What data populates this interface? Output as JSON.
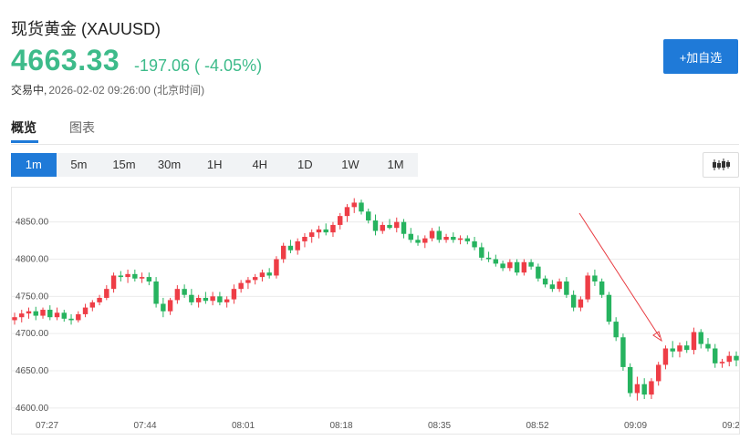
{
  "header": {
    "title": "现货黄金 (XAUUSD)",
    "price": "4663.33",
    "change": "-197.06 ( -4.05%)",
    "status_label": "交易中,",
    "timestamp": "2026-02-02 09:26:00 (北京时间)",
    "add_button": "+加自选"
  },
  "tabs": [
    {
      "label": "概览",
      "active": true
    },
    {
      "label": "图表",
      "active": false
    }
  ],
  "intervals": [
    {
      "label": "1m",
      "active": true
    },
    {
      "label": "5m",
      "active": false
    },
    {
      "label": "15m",
      "active": false
    },
    {
      "label": "30m",
      "active": false
    },
    {
      "label": "1H",
      "active": false
    },
    {
      "label": "4H",
      "active": false
    },
    {
      "label": "1D",
      "active": false
    },
    {
      "label": "1W",
      "active": false
    },
    {
      "label": "1M",
      "active": false
    }
  ],
  "colors": {
    "up": "#ee3d46",
    "down": "#26b35f",
    "accent": "#1f7ad8",
    "price": "#3dbb8a",
    "annotation_arrow": "#e8393f"
  },
  "chart_data": {
    "type": "candlestick",
    "ylim": [
      4590,
      4890
    ],
    "y_ticks": [
      "4600.00",
      "4650.00",
      "4700.00",
      "4750.00",
      "4800.00",
      "4850.00"
    ],
    "x_ticks": [
      "07:27",
      "07:44",
      "08:01",
      "08:18",
      "08:35",
      "08:52",
      "09:09",
      "09:2"
    ],
    "annotation": "arrow pointing down toward the 09:09 low",
    "ohlc": [
      [
        4718,
        4728,
        4712,
        4722
      ],
      [
        4722,
        4732,
        4715,
        4727
      ],
      [
        4727,
        4735,
        4720,
        4730
      ],
      [
        4730,
        4736,
        4718,
        4724
      ],
      [
        4724,
        4735,
        4720,
        4732
      ],
      [
        4732,
        4738,
        4718,
        4722
      ],
      [
        4722,
        4735,
        4718,
        4728
      ],
      [
        4728,
        4732,
        4716,
        4720
      ],
      [
        4720,
        4726,
        4712,
        4718
      ],
      [
        4718,
        4730,
        4715,
        4726
      ],
      [
        4726,
        4740,
        4722,
        4735
      ],
      [
        4735,
        4745,
        4730,
        4742
      ],
      [
        4742,
        4752,
        4738,
        4748
      ],
      [
        4748,
        4765,
        4745,
        4760
      ],
      [
        4760,
        4782,
        4755,
        4778
      ],
      [
        4778,
        4784,
        4770,
        4776
      ],
      [
        4776,
        4786,
        4768,
        4780
      ],
      [
        4780,
        4786,
        4770,
        4774
      ],
      [
        4774,
        4782,
        4768,
        4776
      ],
      [
        4776,
        4782,
        4765,
        4770
      ],
      [
        4770,
        4776,
        4735,
        4740
      ],
      [
        4740,
        4748,
        4722,
        4730
      ],
      [
        4730,
        4748,
        4725,
        4745
      ],
      [
        4745,
        4765,
        4740,
        4760
      ],
      [
        4760,
        4766,
        4748,
        4752
      ],
      [
        4752,
        4760,
        4738,
        4742
      ],
      [
        4742,
        4752,
        4735,
        4748
      ],
      [
        4748,
        4756,
        4740,
        4744
      ],
      [
        4744,
        4756,
        4738,
        4750
      ],
      [
        4750,
        4756,
        4738,
        4742
      ],
      [
        4742,
        4750,
        4735,
        4746
      ],
      [
        4746,
        4766,
        4740,
        4760
      ],
      [
        4760,
        4772,
        4755,
        4768
      ],
      [
        4768,
        4776,
        4760,
        4772
      ],
      [
        4772,
        4780,
        4766,
        4776
      ],
      [
        4776,
        4786,
        4770,
        4782
      ],
      [
        4782,
        4788,
        4774,
        4778
      ],
      [
        4778,
        4804,
        4774,
        4800
      ],
      [
        4800,
        4822,
        4795,
        4818
      ],
      [
        4818,
        4826,
        4808,
        4812
      ],
      [
        4812,
        4828,
        4806,
        4824
      ],
      [
        4824,
        4835,
        4816,
        4830
      ],
      [
        4830,
        4840,
        4822,
        4836
      ],
      [
        4836,
        4845,
        4828,
        4840
      ],
      [
        4840,
        4848,
        4832,
        4836
      ],
      [
        4836,
        4850,
        4830,
        4846
      ],
      [
        4846,
        4862,
        4840,
        4858
      ],
      [
        4858,
        4874,
        4850,
        4870
      ],
      [
        4870,
        4882,
        4862,
        4876
      ],
      [
        4876,
        4880,
        4860,
        4864
      ],
      [
        4864,
        4868,
        4848,
        4852
      ],
      [
        4852,
        4860,
        4832,
        4838
      ],
      [
        4838,
        4850,
        4834,
        4846
      ],
      [
        4846,
        4854,
        4840,
        4842
      ],
      [
        4842,
        4856,
        4836,
        4850
      ],
      [
        4850,
        4854,
        4828,
        4834
      ],
      [
        4834,
        4842,
        4822,
        4826
      ],
      [
        4826,
        4832,
        4818,
        4822
      ],
      [
        4822,
        4832,
        4815,
        4828
      ],
      [
        4828,
        4842,
        4824,
        4838
      ],
      [
        4838,
        4844,
        4822,
        4826
      ],
      [
        4826,
        4834,
        4822,
        4830
      ],
      [
        4830,
        4836,
        4822,
        4826
      ],
      [
        4826,
        4832,
        4820,
        4828
      ],
      [
        4828,
        4832,
        4820,
        4824
      ],
      [
        4824,
        4830,
        4812,
        4816
      ],
      [
        4816,
        4822,
        4798,
        4802
      ],
      [
        4802,
        4810,
        4796,
        4800
      ],
      [
        4800,
        4806,
        4790,
        4794
      ],
      [
        4794,
        4798,
        4784,
        4788
      ],
      [
        4788,
        4800,
        4784,
        4796
      ],
      [
        4796,
        4800,
        4778,
        4782
      ],
      [
        4782,
        4800,
        4778,
        4796
      ],
      [
        4796,
        4800,
        4786,
        4790
      ],
      [
        4790,
        4794,
        4770,
        4774
      ],
      [
        4774,
        4778,
        4762,
        4766
      ],
      [
        4766,
        4772,
        4756,
        4760
      ],
      [
        4760,
        4774,
        4756,
        4770
      ],
      [
        4770,
        4776,
        4748,
        4752
      ],
      [
        4752,
        4758,
        4730,
        4735
      ],
      [
        4735,
        4750,
        4730,
        4746
      ],
      [
        4746,
        4782,
        4742,
        4778
      ],
      [
        4778,
        4786,
        4764,
        4770
      ],
      [
        4770,
        4774,
        4748,
        4752
      ],
      [
        4752,
        4756,
        4712,
        4716
      ],
      [
        4716,
        4722,
        4690,
        4695
      ],
      [
        4695,
        4700,
        4650,
        4655
      ],
      [
        4655,
        4660,
        4615,
        4620
      ],
      [
        4620,
        4642,
        4610,
        4632
      ],
      [
        4632,
        4640,
        4612,
        4618
      ],
      [
        4618,
        4640,
        4612,
        4636
      ],
      [
        4636,
        4662,
        4630,
        4658
      ],
      [
        4658,
        4684,
        4652,
        4680
      ],
      [
        4680,
        4690,
        4668,
        4676
      ],
      [
        4676,
        4688,
        4668,
        4684
      ],
      [
        4684,
        4690,
        4674,
        4678
      ],
      [
        4678,
        4708,
        4672,
        4702
      ],
      [
        4702,
        4706,
        4680,
        4686
      ],
      [
        4686,
        4694,
        4676,
        4680
      ],
      [
        4680,
        4686,
        4654,
        4660
      ],
      [
        4660,
        4666,
        4654,
        4662
      ],
      [
        4662,
        4676,
        4656,
        4670
      ],
      [
        4670,
        4676,
        4656,
        4664
      ]
    ]
  }
}
